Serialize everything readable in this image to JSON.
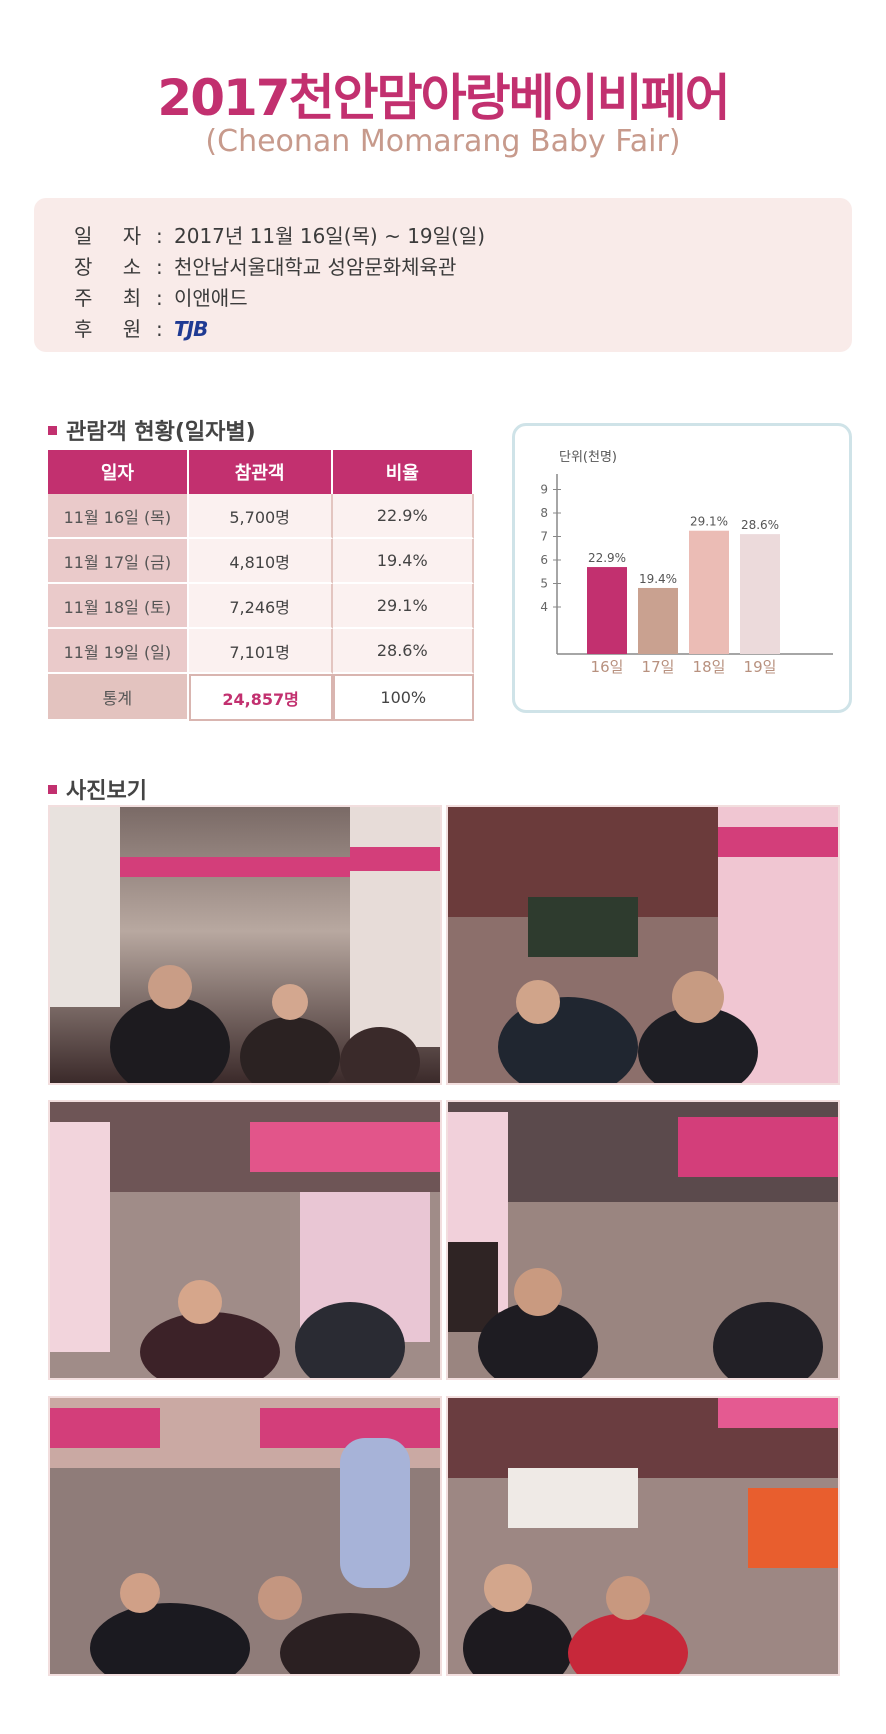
{
  "header": {
    "title": "2017천안맘아랑베이비페어",
    "subtitle": "(Cheonan Momarang Baby Fair)"
  },
  "info": {
    "date_label": "일 자",
    "date_value": "2017년 11월 16일(목) ~ 19일(일)",
    "venue_label": "장 소",
    "venue_value": "천안남서울대학교 성암문화체육관",
    "host_label": "주 최",
    "host_value": "이앤애드",
    "sponsor_label": "후 원",
    "sponsor_logo_text": "TJB"
  },
  "stats_section": {
    "heading": "관람객 현황(일자별)",
    "columns": [
      "일자",
      "참관객",
      "비율"
    ],
    "rows": [
      {
        "date": "11월 16일 (목)",
        "visitors": "5,700명",
        "ratio": "22.9%"
      },
      {
        "date": "11월 17일 (금)",
        "visitors": "4,810명",
        "ratio": "19.4%"
      },
      {
        "date": "11월 18일 (토)",
        "visitors": "7,246명",
        "ratio": "29.1%"
      },
      {
        "date": "11월 19일 (일)",
        "visitors": "7,101명",
        "ratio": "28.6%"
      }
    ],
    "total": {
      "label": "통계",
      "visitors": "24,857명",
      "ratio": "100%"
    }
  },
  "chart_data": {
    "type": "bar",
    "ylabel": "단위(천명)",
    "categories": [
      "16일",
      "17일",
      "18일",
      "19일"
    ],
    "values": [
      5.7,
      4.81,
      7.246,
      7.101
    ],
    "data_labels": [
      "22.9%",
      "19.4%",
      "29.1%",
      "28.6%"
    ],
    "yticks": [
      4,
      5,
      6,
      7,
      8,
      9
    ],
    "ylim": [
      2,
      10
    ],
    "colors": [
      "#c2306f",
      "#c9a190",
      "#ebbcb5",
      "#ecdadb"
    ]
  },
  "photos_section": {
    "heading": "사진보기"
  },
  "colors": {
    "accent": "#c2306f",
    "subtitle": "#c79a8c",
    "info_bg": "#f9ebe9"
  }
}
